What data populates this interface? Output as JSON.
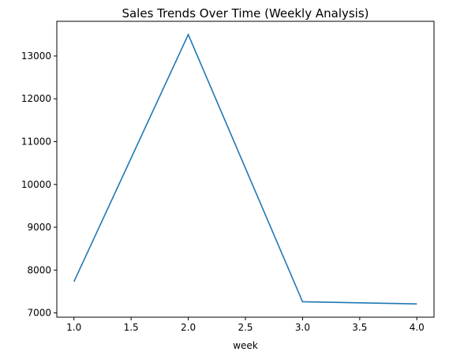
{
  "chart_data": {
    "type": "line",
    "title": "Sales Trends Over Time (Weekly Analysis)",
    "xlabel": "week",
    "ylabel": "",
    "x": [
      1.0,
      2.0,
      3.0,
      4.0
    ],
    "series": [
      {
        "values": [
          7730,
          13500,
          7260,
          7210
        ],
        "color": "#1f77b4"
      }
    ],
    "xlim": [
      0.85,
      4.15
    ],
    "ylim": [
      6900,
      13810
    ],
    "xticks": [
      1.0,
      1.5,
      2.0,
      2.5,
      3.0,
      3.5,
      4.0
    ],
    "xtick_labels": [
      "1.0",
      "1.5",
      "2.0",
      "2.5",
      "3.0",
      "3.5",
      "4.0"
    ],
    "yticks": [
      7000,
      8000,
      9000,
      10000,
      11000,
      12000,
      13000
    ],
    "ytick_labels": [
      "7000",
      "8000",
      "9000",
      "10000",
      "11000",
      "12000",
      "13000"
    ],
    "grid": false,
    "legend": "none"
  }
}
